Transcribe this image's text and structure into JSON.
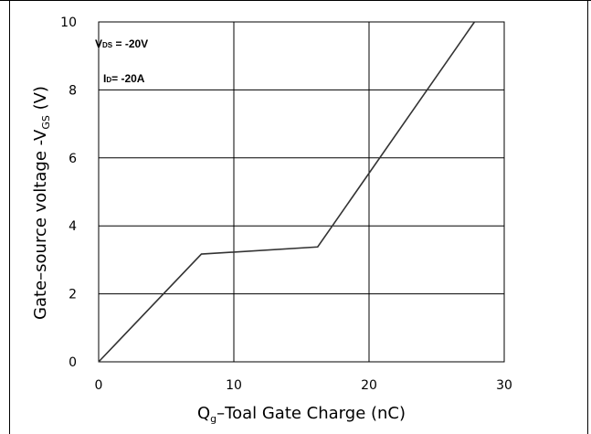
{
  "chart_data": {
    "type": "line",
    "title": "",
    "xlabel": {
      "main": "Q",
      "sub": "g",
      "rest": "–Toal Gate Charge  (nC)"
    },
    "ylabel": {
      "main": "Gate–source voltage -V",
      "sub": "GS",
      "rest": " (V)"
    },
    "xlim": [
      0,
      30
    ],
    "ylim": [
      0,
      10
    ],
    "xticks": [
      0,
      10,
      20,
      30
    ],
    "yticks": [
      0,
      2,
      4,
      6,
      8,
      10
    ],
    "grid": true,
    "series": [
      {
        "color": "#333333",
        "x": [
          0,
          7.6,
          16.2,
          27.8
        ],
        "y": [
          0,
          3.17,
          3.38,
          10
        ]
      }
    ],
    "annotations": [
      {
        "big": "V",
        "small": "DS",
        "rest": " = -20V"
      },
      {
        "big": "I",
        "small": "D",
        "rest": "= -20A"
      }
    ]
  },
  "colors": {
    "grid": "#000000",
    "line": "#333333",
    "border": "#000000"
  }
}
